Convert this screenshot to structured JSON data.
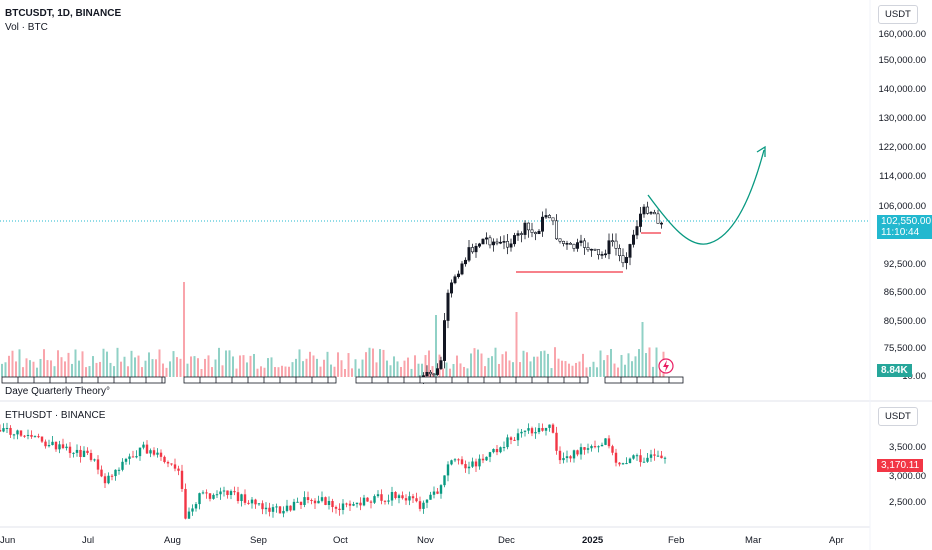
{
  "header": {
    "symbol": "BTCUSDT, 1D, BINANCE",
    "volume_label": "Vol · BTC",
    "unit": "USDT"
  },
  "indicator": {
    "label": "Daye Quarterly Theory°"
  },
  "eth_pane": {
    "symbol": "ETHUSDT · BINANCE",
    "unit": "USDT",
    "price_axis": [
      "3,500.00",
      "3,000.00",
      "2,500.00"
    ],
    "last_price": "3,170.11"
  },
  "price_axis": [
    "160,000.00",
    "150,000.00",
    "140,000.00",
    "130,000.00",
    "122,000.00",
    "114,000.00",
    "106,000.00",
    "92,500.00",
    "86,500.00",
    "80,500.00",
    "75,500.00",
    "10.00"
  ],
  "last_price": {
    "value": "102,550.00",
    "countdown": "11:10:44"
  },
  "volume_last": "8.84K",
  "time_axis": [
    "Jun",
    "Jul",
    "Aug",
    "Sep",
    "Oct",
    "Nov",
    "Dec",
    "2025",
    "Feb",
    "Mar",
    "Apr"
  ],
  "colors": {
    "up": "#089981",
    "down": "#f23645",
    "price_tag": "#22b8cf",
    "eth_tag": "#f23645",
    "volume_tag": "#26a69a",
    "projection": "#089981",
    "support_lines": "#f23645"
  }
}
